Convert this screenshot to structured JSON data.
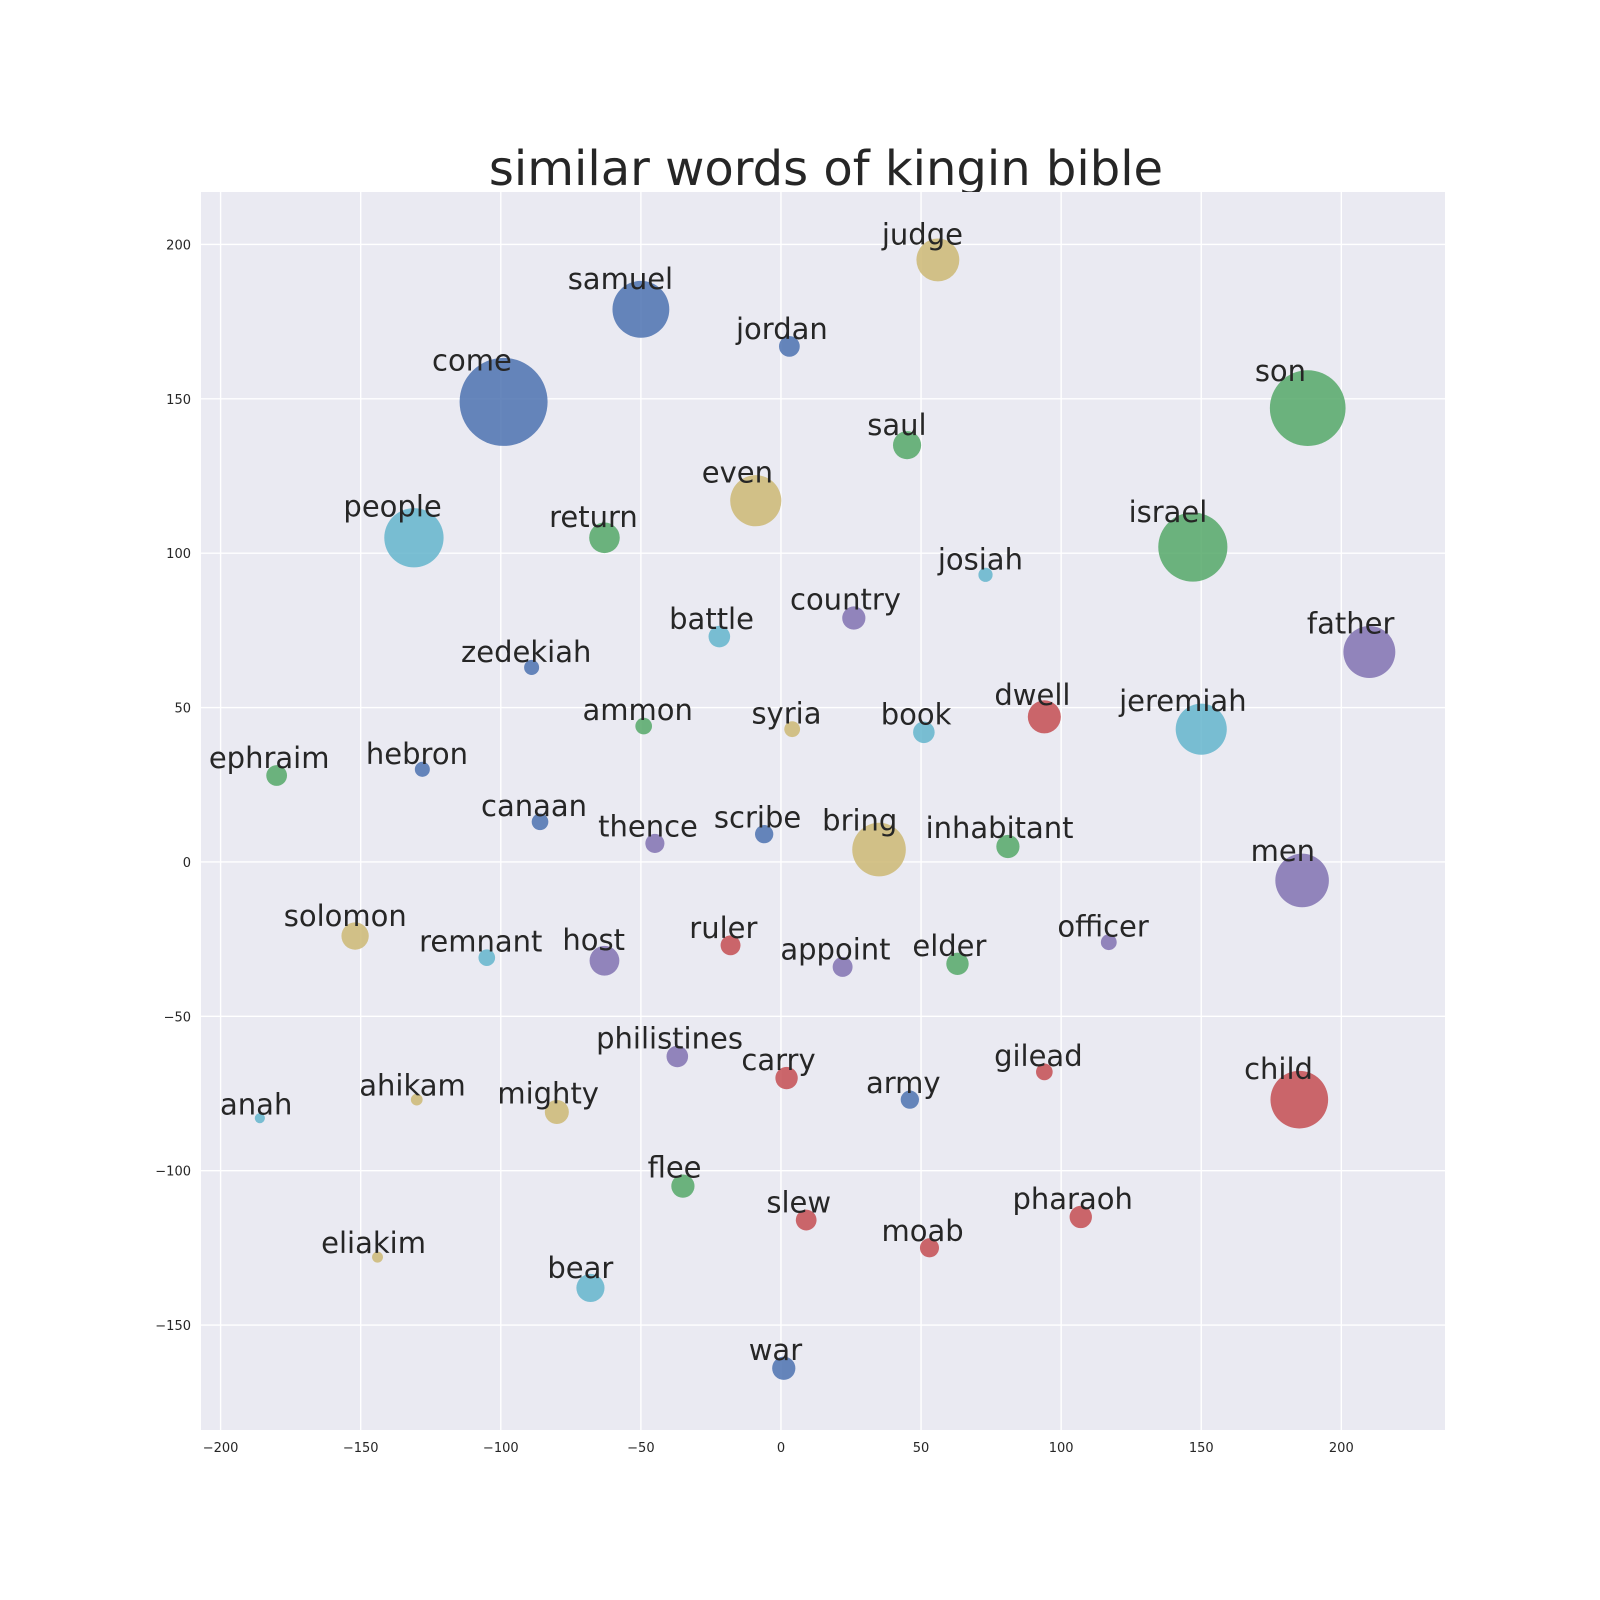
{
  "chart_data": {
    "type": "scatter",
    "title": "similar words of kingin bible",
    "xlabel": "",
    "ylabel": "",
    "xlim": [
      -207,
      237
    ],
    "ylim": [
      -184,
      217
    ],
    "xticks": [
      -200,
      -150,
      -100,
      -50,
      0,
      50,
      100,
      150,
      200
    ],
    "yticks": [
      -150,
      -100,
      -50,
      0,
      50,
      100,
      150,
      200
    ],
    "grid": true,
    "colors": {
      "blue": "#4c72b0",
      "green": "#55a868",
      "red": "#c44e52",
      "purple": "#8172b2",
      "yellow": "#ccb974",
      "cyan": "#64b5cd",
      "background": "#eaeaf2"
    },
    "points": [
      {
        "word": "come",
        "x": -99,
        "y": 149,
        "size": 100,
        "color": "blue"
      },
      {
        "word": "son",
        "x": 188,
        "y": 147,
        "size": 85,
        "color": "green"
      },
      {
        "word": "israel",
        "x": 147,
        "y": 102,
        "size": 77,
        "color": "green"
      },
      {
        "word": "people",
        "x": -131,
        "y": 105,
        "size": 65,
        "color": "cyan"
      },
      {
        "word": "samuel",
        "x": -50,
        "y": 179,
        "size": 62,
        "color": "blue"
      },
      {
        "word": "even",
        "x": -9,
        "y": 117,
        "size": 55,
        "color": "yellow"
      },
      {
        "word": "bring",
        "x": 35,
        "y": 4,
        "size": 58,
        "color": "yellow"
      },
      {
        "word": "men",
        "x": 186,
        "y": -6,
        "size": 58,
        "color": "purple"
      },
      {
        "word": "child",
        "x": 185,
        "y": -77,
        "size": 63,
        "color": "red"
      },
      {
        "word": "father",
        "x": 210,
        "y": 68,
        "size": 56,
        "color": "purple"
      },
      {
        "word": "jeremiah",
        "x": 150,
        "y": 43,
        "size": 55,
        "color": "cyan"
      },
      {
        "word": "judge",
        "x": 56,
        "y": 195,
        "size": 45,
        "color": "yellow"
      },
      {
        "word": "saul",
        "x": 45,
        "y": 135,
        "size": 27,
        "color": "green"
      },
      {
        "word": "return",
        "x": -63,
        "y": 105,
        "size": 30,
        "color": "green"
      },
      {
        "word": "jordan",
        "x": 3,
        "y": 167,
        "size": 18,
        "color": "blue"
      },
      {
        "word": "josiah",
        "x": 73,
        "y": 93,
        "size": 10,
        "color": "cyan"
      },
      {
        "word": "country",
        "x": 26,
        "y": 79,
        "size": 21,
        "color": "purple"
      },
      {
        "word": "battle",
        "x": -22,
        "y": 73,
        "size": 19,
        "color": "cyan"
      },
      {
        "word": "zedekiah",
        "x": -89,
        "y": 63,
        "size": 11,
        "color": "blue"
      },
      {
        "word": "dwell",
        "x": 94,
        "y": 47,
        "size": 33,
        "color": "red"
      },
      {
        "word": "ammon",
        "x": -49,
        "y": 44,
        "size": 13,
        "color": "green"
      },
      {
        "word": "syria",
        "x": 4,
        "y": 43,
        "size": 12,
        "color": "yellow"
      },
      {
        "word": "book",
        "x": 51,
        "y": 42,
        "size": 19,
        "color": "cyan"
      },
      {
        "word": "ephraim",
        "x": -180,
        "y": 28,
        "size": 18,
        "color": "green"
      },
      {
        "word": "hebron",
        "x": -128,
        "y": 30,
        "size": 11,
        "color": "blue"
      },
      {
        "word": "canaan",
        "x": -86,
        "y": 13,
        "size": 13,
        "color": "blue"
      },
      {
        "word": "thence",
        "x": -45,
        "y": 6,
        "size": 16,
        "color": "purple"
      },
      {
        "word": "scribe",
        "x": -6,
        "y": 9,
        "size": 15,
        "color": "blue"
      },
      {
        "word": "inhabitant",
        "x": 81,
        "y": 5,
        "size": 21,
        "color": "green"
      },
      {
        "word": "solomon",
        "x": -152,
        "y": -24,
        "size": 26,
        "color": "yellow"
      },
      {
        "word": "remnant",
        "x": -105,
        "y": -31,
        "size": 13,
        "color": "cyan"
      },
      {
        "word": "host",
        "x": -63,
        "y": -32,
        "size": 29,
        "color": "purple"
      },
      {
        "word": "ruler",
        "x": -18,
        "y": -27,
        "size": 17,
        "color": "red"
      },
      {
        "word": "appoint",
        "x": 22,
        "y": -34,
        "size": 17,
        "color": "purple"
      },
      {
        "word": "elder",
        "x": 63,
        "y": -33,
        "size": 20,
        "color": "green"
      },
      {
        "word": "officer",
        "x": 117,
        "y": -26,
        "size": 12,
        "color": "purple"
      },
      {
        "word": "philistines",
        "x": -37,
        "y": -63,
        "size": 19,
        "color": "purple"
      },
      {
        "word": "carry",
        "x": 2,
        "y": -70,
        "size": 20,
        "color": "red"
      },
      {
        "word": "gilead",
        "x": 94,
        "y": -68,
        "size": 13,
        "color": "red"
      },
      {
        "word": "army",
        "x": 46,
        "y": -77,
        "size": 15,
        "color": "blue"
      },
      {
        "word": "ahikam",
        "x": -130,
        "y": -77,
        "size": 7,
        "color": "yellow"
      },
      {
        "word": "mighty",
        "x": -80,
        "y": -81,
        "size": 22,
        "color": "yellow"
      },
      {
        "word": "anah",
        "x": -186,
        "y": -83,
        "size": 5,
        "color": "cyan"
      },
      {
        "word": "flee",
        "x": -35,
        "y": -105,
        "size": 21,
        "color": "green"
      },
      {
        "word": "slew",
        "x": 9,
        "y": -116,
        "size": 18,
        "color": "red"
      },
      {
        "word": "pharaoh",
        "x": 107,
        "y": -115,
        "size": 20,
        "color": "red"
      },
      {
        "word": "moab",
        "x": 53,
        "y": -125,
        "size": 16,
        "color": "red"
      },
      {
        "word": "eliakim",
        "x": -144,
        "y": -128,
        "size": 6,
        "color": "yellow"
      },
      {
        "word": "bear",
        "x": -68,
        "y": -138,
        "size": 27,
        "color": "cyan"
      },
      {
        "word": "war",
        "x": 1,
        "y": -164,
        "size": 21,
        "color": "blue"
      }
    ]
  }
}
